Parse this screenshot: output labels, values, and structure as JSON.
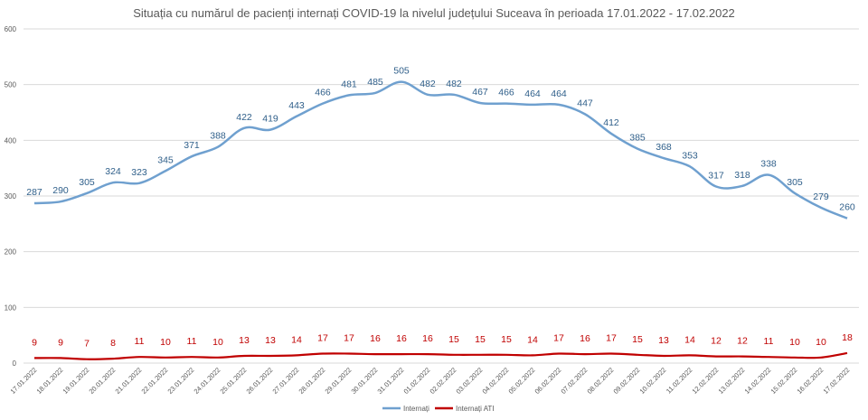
{
  "chart_data": {
    "type": "line",
    "title": "Situația cu numărul de pacienți internați COVID-19 la nivelul județului Suceava în perioada 17.01.2022 - 17.02.2022",
    "categories": [
      "17.01.2022",
      "18.01.2022",
      "19.01.2022",
      "20.01.2022",
      "21.01.2022",
      "22.01.2022",
      "23.01.2022",
      "24.01.2022",
      "25.01.2022",
      "26.01.2022",
      "27.01.2022",
      "28.01.2022",
      "29.01.2022",
      "30.01.2022",
      "31.01.2022",
      "01.02.2022",
      "02.02.2022",
      "03.02.2022",
      "04.02.2022",
      "05.02.2022",
      "06.02.2022",
      "07.02.2022",
      "08.02.2022",
      "09.02.2022",
      "10.02.2022",
      "11.02.2022",
      "12.02.2022",
      "13.02.2022",
      "14.02.2022",
      "15.02.2022",
      "16.02.2022",
      "17.02.2022"
    ],
    "series": [
      {
        "name": "Internați",
        "color": "#6fa0cf",
        "label_color": "#2f5f8a",
        "values": [
          287,
          290,
          305,
          324,
          323,
          345,
          371,
          388,
          422,
          419,
          443,
          466,
          481,
          485,
          505,
          482,
          482,
          467,
          466,
          464,
          464,
          447,
          412,
          385,
          368,
          353,
          317,
          318,
          338,
          305,
          279,
          260
        ]
      },
      {
        "name": "Internați ATI",
        "color": "#c00000",
        "label_color": "#c00000",
        "values": [
          9,
          9,
          7,
          8,
          11,
          10,
          11,
          10,
          13,
          13,
          14,
          17,
          17,
          16,
          16,
          16,
          15,
          15,
          15,
          14,
          17,
          16,
          17,
          15,
          13,
          14,
          12,
          12,
          11,
          10,
          10,
          18
        ]
      }
    ],
    "ylim": [
      0,
      600
    ],
    "yticks": [
      0,
      100,
      200,
      300,
      400,
      500,
      600
    ],
    "grid": true,
    "legend": "bottom-center",
    "xlabel": "",
    "ylabel": ""
  }
}
